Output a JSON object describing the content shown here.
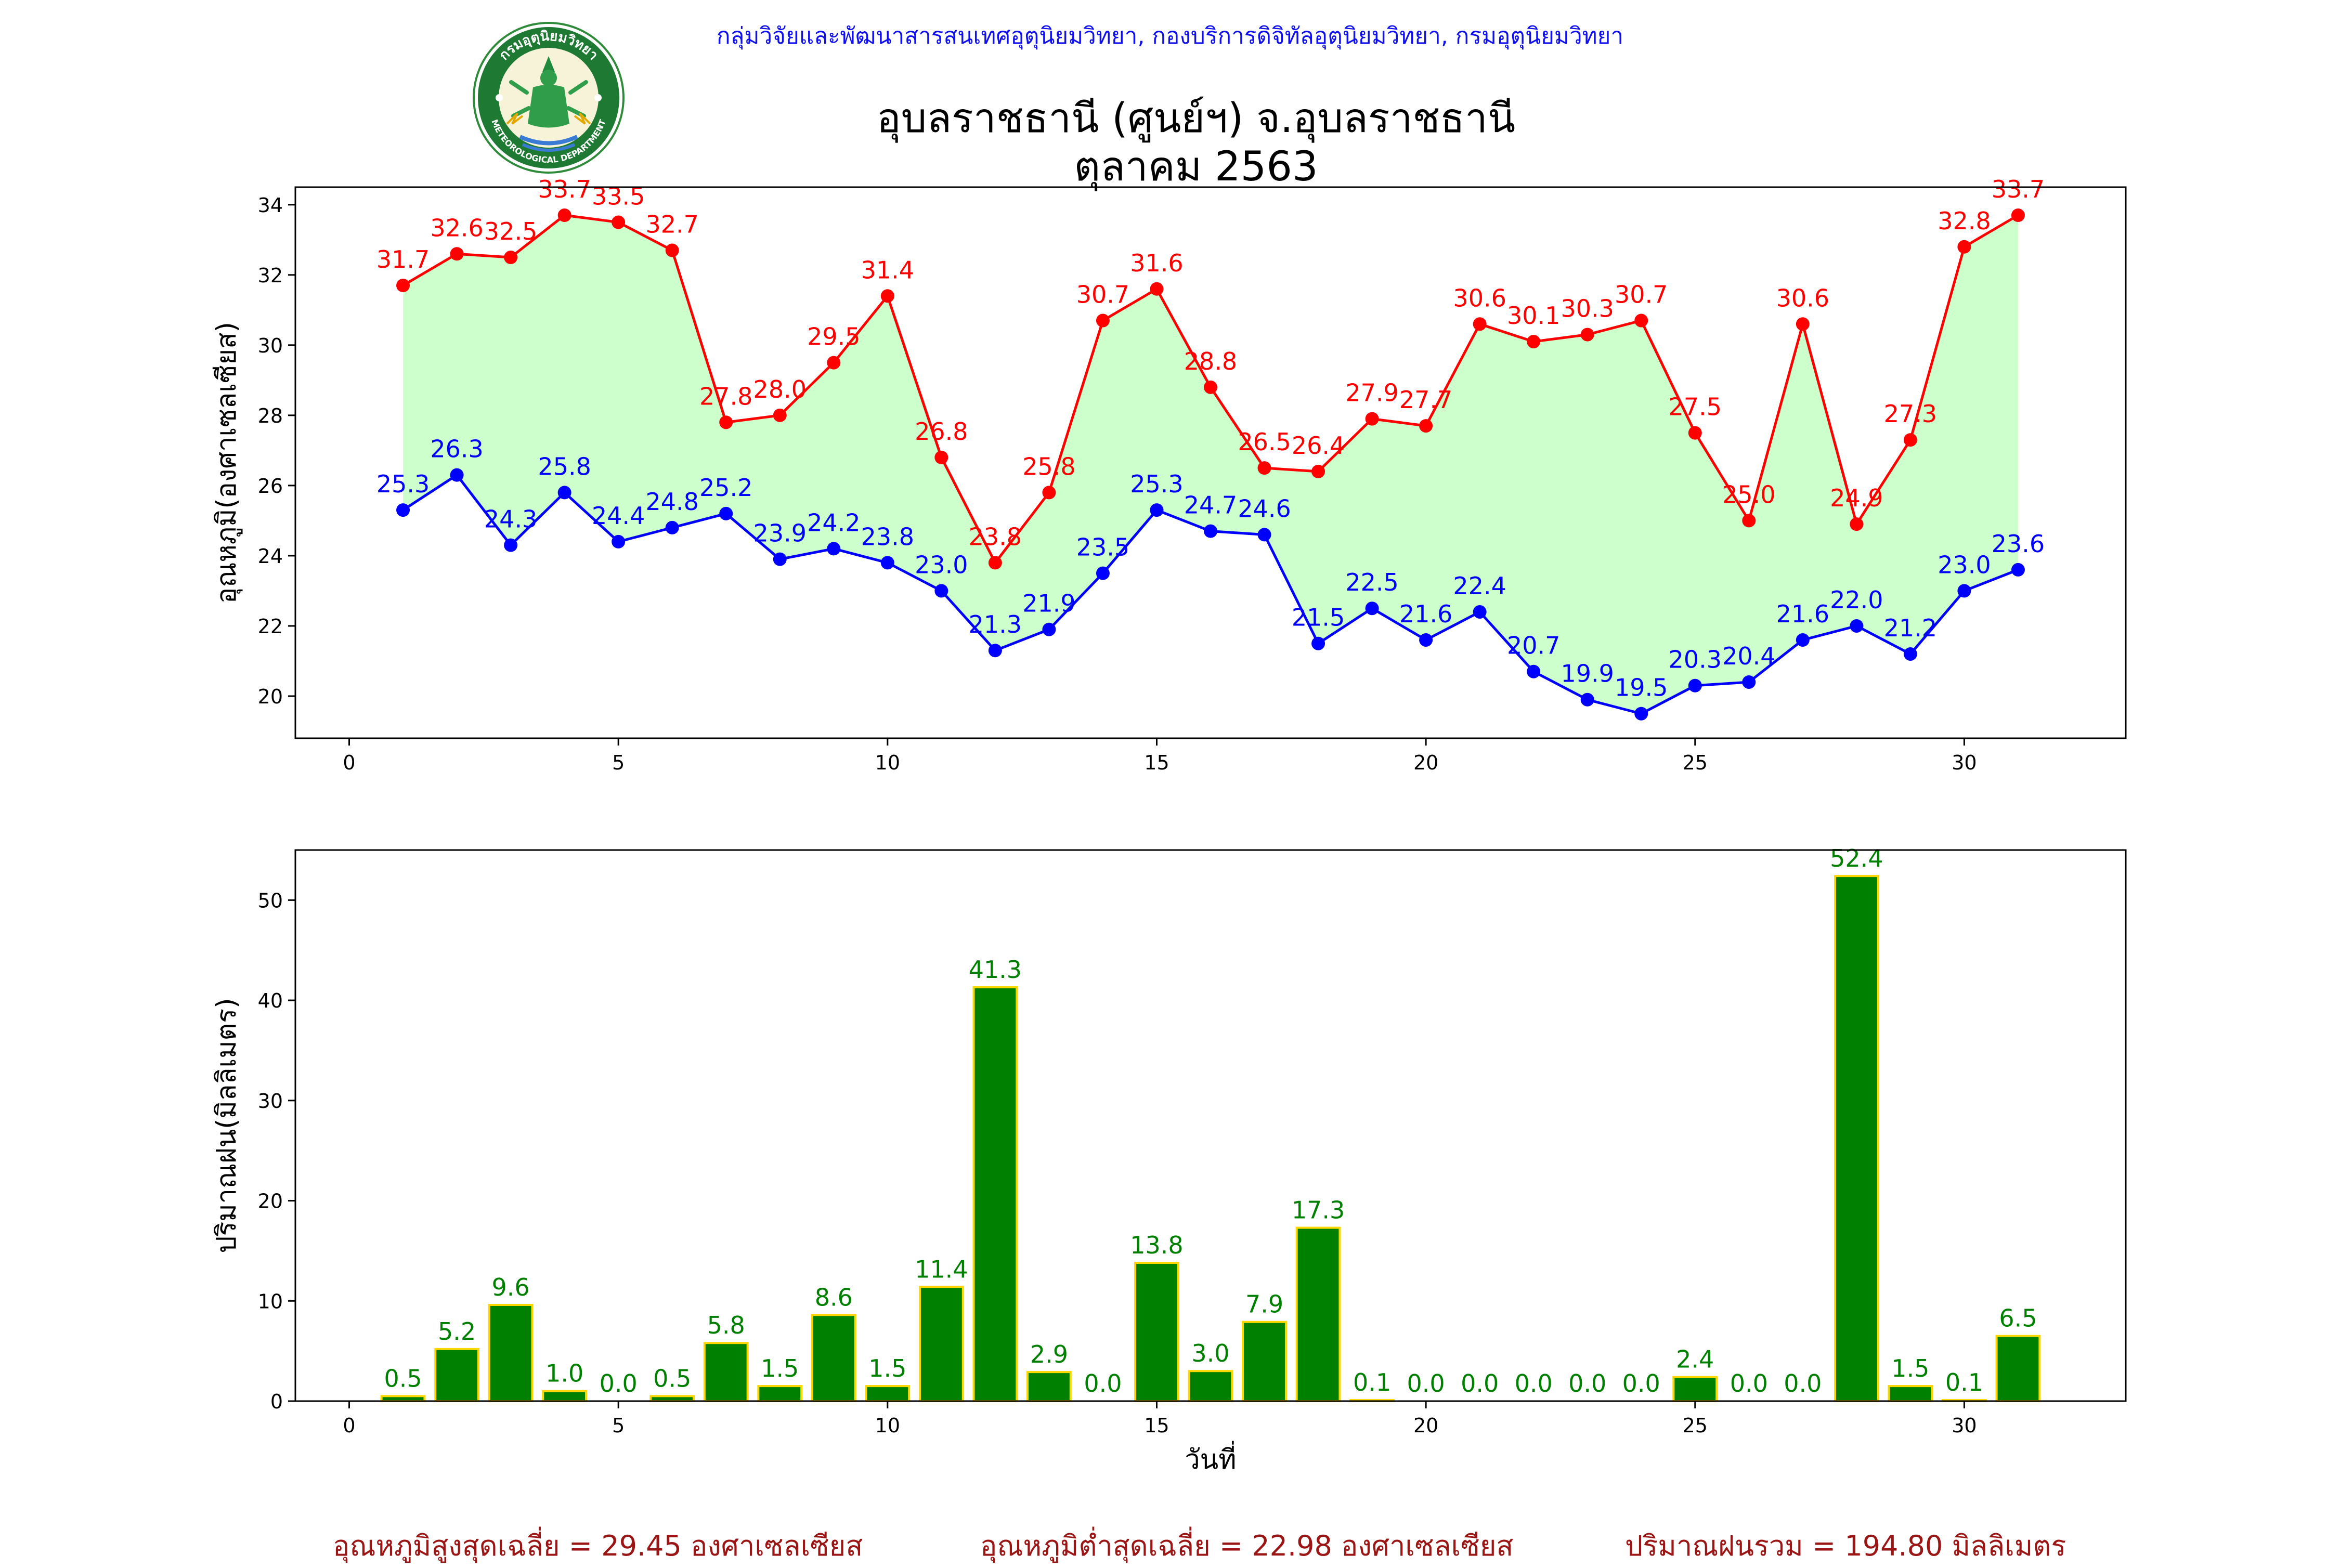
{
  "header": {
    "credit": "กลุ่มวิจัยและพัฒนาสารสนเทศอุตุนิยมวิทยา, กองบริการดิจิทัลอุตุนิยมวิทยา, กรมอุตุนิยมวิทยา",
    "title_line1": "อุบลราชธานี (ศูนย์ฯ) จ.อุบลราชธานี",
    "title_line2": "ตุลาคม 2563",
    "logo_text_top": "กรมอุตุนิยมวิทยา",
    "logo_text_bottom": "METEOROLOGICAL DEPARTMENT"
  },
  "colors": {
    "max_line": "#ff0000",
    "min_line": "#0000ff",
    "fill_between": "#ccffcc",
    "rain_bar": "#008000",
    "rain_bar_edge": "#ffd700",
    "summary_text": "#9b1515",
    "header_text": "#1010ee"
  },
  "summary": {
    "avg_max": "อุณหภูมิสูงสุดเฉลี่ย = 29.45 องศาเซลเซียส",
    "avg_min": "อุณหภูมิต่ำสุดเฉลี่ย = 22.98 องศาเซลเซียส",
    "rain_total": "ปริมาณฝนรวม = 194.80 มิลลิเมตร"
  },
  "chart_data": [
    {
      "type": "line",
      "ylabel": "อุณหภูมิ(องศาเซลเซียส)",
      "xlabel": "",
      "xlim": [
        -1,
        33
      ],
      "ylim": [
        18.8,
        34.5
      ],
      "xticks": [
        0,
        5,
        10,
        15,
        20,
        25,
        30
      ],
      "yticks": [
        20,
        22,
        24,
        26,
        28,
        30,
        32,
        34
      ],
      "fill_between_series": true,
      "x": [
        1,
        2,
        3,
        4,
        5,
        6,
        7,
        8,
        9,
        10,
        11,
        12,
        13,
        14,
        15,
        16,
        17,
        18,
        19,
        20,
        21,
        22,
        23,
        24,
        25,
        26,
        27,
        28,
        29,
        30,
        31
      ],
      "series": [
        {
          "key": "max",
          "values": [
            31.7,
            32.6,
            32.5,
            33.7,
            33.5,
            32.7,
            27.8,
            28.0,
            29.5,
            31.4,
            26.8,
            23.8,
            25.8,
            30.7,
            31.6,
            28.8,
            26.5,
            26.4,
            27.9,
            27.7,
            30.6,
            30.1,
            30.3,
            30.7,
            27.5,
            25.0,
            30.6,
            24.9,
            27.3,
            32.8,
            33.7
          ]
        },
        {
          "key": "min",
          "values": [
            25.3,
            26.3,
            24.3,
            25.8,
            24.4,
            24.8,
            25.2,
            23.9,
            24.2,
            23.8,
            23.0,
            21.3,
            21.9,
            23.5,
            25.3,
            24.7,
            24.6,
            21.5,
            22.5,
            21.6,
            22.4,
            20.7,
            19.9,
            19.5,
            20.3,
            20.4,
            21.6,
            22.0,
            21.2,
            23.0,
            23.6
          ]
        }
      ]
    },
    {
      "type": "bar",
      "ylabel": "ปริมาณฝน(มิลลิเมตร)",
      "xlabel": "วันที่",
      "xlim": [
        -1,
        33
      ],
      "ylim": [
        0,
        55
      ],
      "xticks": [
        0,
        5,
        10,
        15,
        20,
        25,
        30
      ],
      "yticks": [
        0,
        10,
        20,
        30,
        40,
        50
      ],
      "categories": [
        1,
        2,
        3,
        4,
        5,
        6,
        7,
        8,
        9,
        10,
        11,
        12,
        13,
        14,
        15,
        16,
        17,
        18,
        19,
        20,
        21,
        22,
        23,
        24,
        25,
        26,
        27,
        28,
        29,
        30,
        31
      ],
      "values": [
        0.5,
        5.2,
        9.6,
        1.0,
        0.0,
        0.5,
        5.8,
        1.5,
        8.6,
        1.5,
        11.4,
        41.3,
        2.9,
        0.0,
        13.8,
        3.0,
        7.9,
        17.3,
        0.1,
        0.0,
        0.0,
        0.0,
        0.0,
        0.0,
        2.4,
        0.0,
        0.0,
        52.4,
        1.5,
        0.1,
        6.5
      ]
    }
  ]
}
